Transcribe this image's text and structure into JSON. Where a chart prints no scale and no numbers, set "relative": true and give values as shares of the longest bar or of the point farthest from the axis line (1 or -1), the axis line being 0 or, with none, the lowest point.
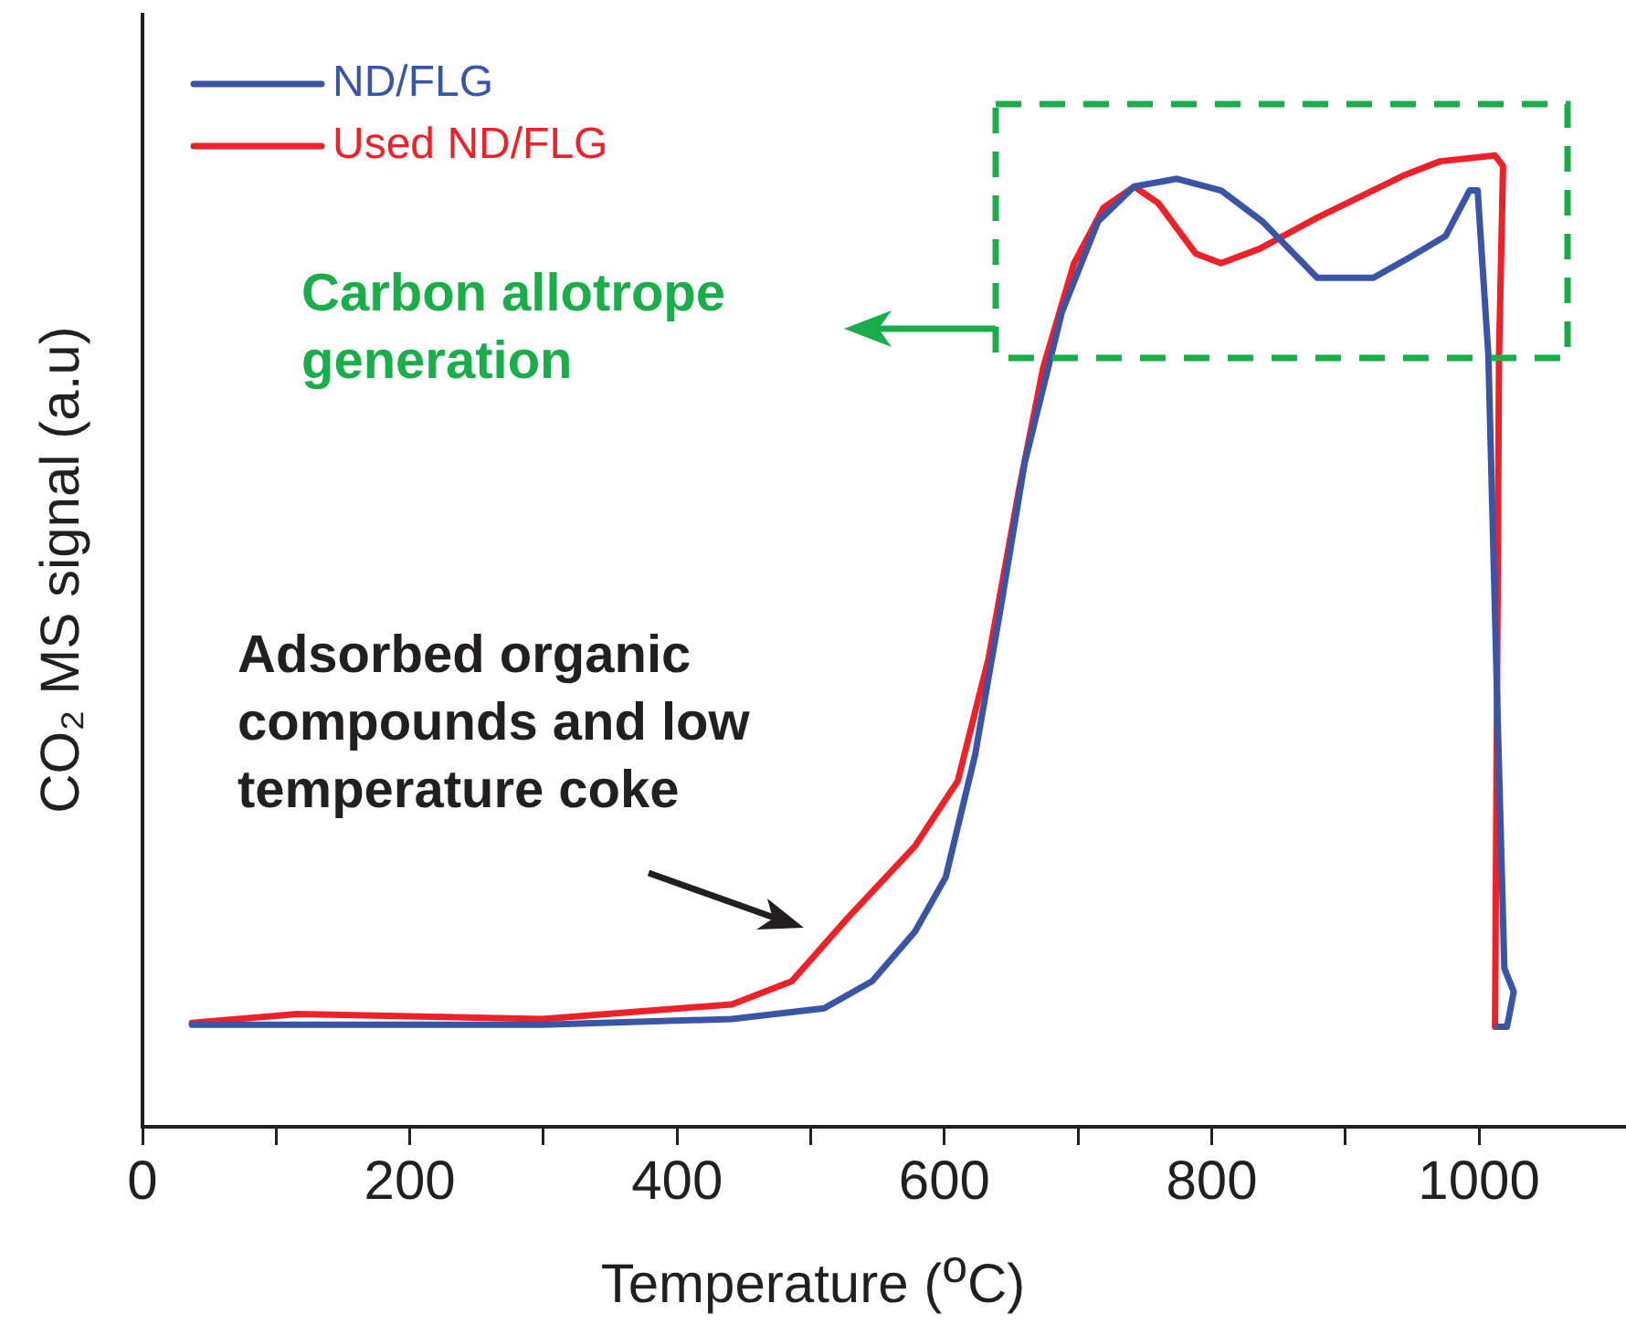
{
  "chart_data": {
    "type": "line",
    "xlabel": "Temperature ($^{o}$C)",
    "ylabel": "CO₂ MS signal (a.u)",
    "relative": true,
    "xlim": [
      0,
      1110
    ],
    "xticks": [
      0,
      {
        "value": 100,
        "label": null
      },
      200,
      {
        "value": 300,
        "label": null
      },
      400,
      {
        "value": 500,
        "label": null
      },
      600,
      {
        "value": 700,
        "label": null
      },
      800,
      {
        "value": 900,
        "label": null
      },
      1000
    ],
    "legend": "top left",
    "grid": false,
    "marker": "none",
    "line_style": "solid",
    "annotations": [
      "Carbon allotrope generation",
      "Adsorbed organic compounds and low temperature coke"
    ],
    "series": [
      {
        "name": "ND/FLG",
        "color": "#3a55a8",
        "x": [
          37,
          299,
          441,
          510,
          546,
          578,
          601,
          623,
          642,
          660,
          688,
          715,
          742,
          774,
          807,
          838,
          879,
          921,
          948,
          975,
          993,
          999,
          1007,
          1014,
          1019,
          1026,
          1021,
          1014
        ],
        "values": [
          0.105,
          0.105,
          0.111,
          0.122,
          0.15,
          0.201,
          0.257,
          0.383,
          0.533,
          0.683,
          0.839,
          0.932,
          0.968,
          0.976,
          0.964,
          0.932,
          0.874,
          0.874,
          0.895,
          0.917,
          0.964,
          0.964,
          0.795,
          0.42,
          0.163,
          0.139,
          0.103,
          0.103
        ]
      },
      {
        "name": "Used ND/FLG",
        "color": "#ee2028",
        "x": [
          37,
          116,
          299,
          441,
          486,
          527,
          578,
          610,
          633,
          656,
          674,
          697,
          719,
          742,
          760,
          788,
          807,
          836,
          879,
          943,
          971,
          1012,
          1018,
          1015,
          1012
        ],
        "values": [
          0.107,
          0.116,
          0.111,
          0.126,
          0.15,
          0.214,
          0.289,
          0.356,
          0.482,
          0.657,
          0.782,
          0.889,
          0.946,
          0.968,
          0.951,
          0.899,
          0.889,
          0.904,
          0.936,
          0.979,
          0.994,
          1.0,
          0.989,
          0.795,
          0.103
        ]
      }
    ]
  }
}
